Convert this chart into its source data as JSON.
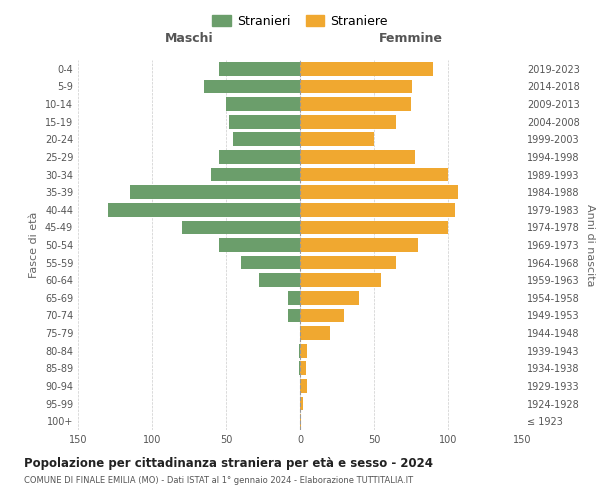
{
  "age_groups": [
    "100+",
    "95-99",
    "90-94",
    "85-89",
    "80-84",
    "75-79",
    "70-74",
    "65-69",
    "60-64",
    "55-59",
    "50-54",
    "45-49",
    "40-44",
    "35-39",
    "30-34",
    "25-29",
    "20-24",
    "15-19",
    "10-14",
    "5-9",
    "0-4"
  ],
  "birth_years": [
    "≤ 1923",
    "1924-1928",
    "1929-1933",
    "1934-1938",
    "1939-1943",
    "1944-1948",
    "1949-1953",
    "1954-1958",
    "1959-1963",
    "1964-1968",
    "1969-1973",
    "1974-1978",
    "1979-1983",
    "1984-1988",
    "1989-1993",
    "1994-1998",
    "1999-2003",
    "2004-2008",
    "2009-2013",
    "2014-2018",
    "2019-2023"
  ],
  "maschi": [
    0,
    0,
    0,
    1,
    1,
    0,
    8,
    8,
    28,
    40,
    55,
    80,
    130,
    115,
    60,
    55,
    45,
    48,
    50,
    65,
    55
  ],
  "femmine": [
    1,
    2,
    5,
    4,
    5,
    20,
    30,
    40,
    55,
    65,
    80,
    100,
    105,
    107,
    100,
    78,
    50,
    65,
    75,
    76,
    90
  ],
  "male_color": "#6b9e6b",
  "female_color": "#f0a830",
  "title": "Popolazione per cittadinanza straniera per età e sesso - 2024",
  "subtitle": "COMUNE DI FINALE EMILIA (MO) - Dati ISTAT al 1° gennaio 2024 - Elaborazione TUTTITALIA.IT",
  "legend_male": "Stranieri",
  "legend_female": "Straniere",
  "xlabel_left": "Maschi",
  "xlabel_right": "Femmine",
  "ylabel_left": "Fasce di età",
  "ylabel_right": "Anni di nascita",
  "xlim": 150,
  "bg_color": "#ffffff",
  "grid_color": "#cccccc"
}
